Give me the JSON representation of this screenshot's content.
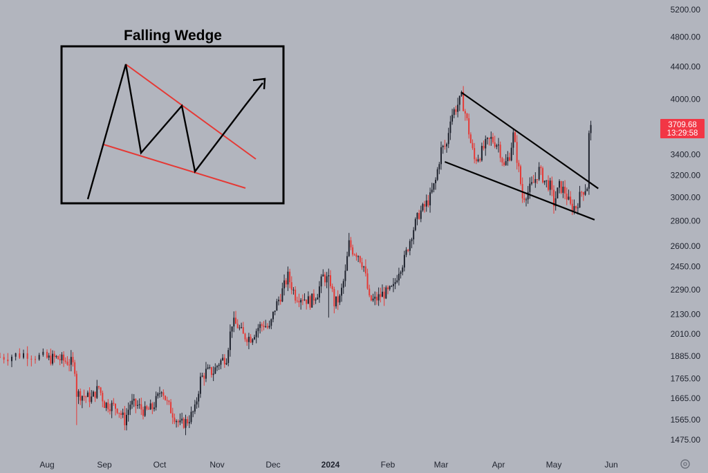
{
  "chart_data": {
    "type": "candlestick",
    "title": "",
    "xlabel": "",
    "ylabel": "",
    "y_scale": "log",
    "ylim": [
      1420,
      5350
    ],
    "y_ticks": [
      "5200.00",
      "4800.00",
      "4400.00",
      "4000.00",
      "3400.00",
      "3200.00",
      "3000.00",
      "2800.00",
      "2600.00",
      "2450.00",
      "2290.00",
      "2130.00",
      "2010.00",
      "1885.00",
      "1765.00",
      "1665.00",
      "1565.00",
      "1475.00"
    ],
    "x_labels": [
      {
        "text": "Aug",
        "bold": false
      },
      {
        "text": "Sep",
        "bold": false
      },
      {
        "text": "Oct",
        "bold": false
      },
      {
        "text": "Nov",
        "bold": false
      },
      {
        "text": "Dec",
        "bold": false
      },
      {
        "text": "2024",
        "bold": true
      },
      {
        "text": "Feb",
        "bold": false
      },
      {
        "text": "Mar",
        "bold": false
      },
      {
        "text": "Apr",
        "bold": false
      },
      {
        "text": "May",
        "bold": false
      },
      {
        "text": "Jun",
        "bold": false
      }
    ],
    "last_price": {
      "value": "3709.68",
      "countdown": "13:29:58"
    },
    "colors": {
      "up": "#1e222d",
      "down": "#e53935",
      "background": "#b2b5be",
      "price_tag": "#f23645"
    },
    "price_path": [
      [
        "2023-07-20",
        1880
      ],
      [
        "2023-07-24",
        1890
      ],
      [
        "2023-07-27",
        1900
      ],
      [
        "2023-07-30",
        1880
      ],
      [
        "2023-08-02",
        1870
      ],
      [
        "2023-08-06",
        1875
      ],
      [
        "2023-08-10",
        1860
      ],
      [
        "2023-08-14",
        1850
      ],
      [
        "2023-08-16",
        1820
      ],
      [
        "2023-08-17",
        1690
      ],
      [
        "2023-08-20",
        1680
      ],
      [
        "2023-08-25",
        1665
      ],
      [
        "2023-08-29",
        1720
      ],
      [
        "2023-09-01",
        1640
      ],
      [
        "2023-09-05",
        1630
      ],
      [
        "2023-09-08",
        1620
      ],
      [
        "2023-09-12",
        1560
      ],
      [
        "2023-09-15",
        1640
      ],
      [
        "2023-09-19",
        1630
      ],
      [
        "2023-09-23",
        1600
      ],
      [
        "2023-09-27",
        1620
      ],
      [
        "2023-09-30",
        1670
      ],
      [
        "2023-10-02",
        1720
      ],
      [
        "2023-10-05",
        1640
      ],
      [
        "2023-10-09",
        1580
      ],
      [
        "2023-10-12",
        1540
      ],
      [
        "2023-10-16",
        1560
      ],
      [
        "2023-10-20",
        1610
      ],
      [
        "2023-10-23",
        1760
      ],
      [
        "2023-10-26",
        1800
      ],
      [
        "2023-10-30",
        1800
      ],
      [
        "2023-11-02",
        1850
      ],
      [
        "2023-11-06",
        1880
      ],
      [
        "2023-11-09",
        2080
      ],
      [
        "2023-11-12",
        2060
      ],
      [
        "2023-11-15",
        2000
      ],
      [
        "2023-11-19",
        1990
      ],
      [
        "2023-11-23",
        2050
      ],
      [
        "2023-11-26",
        2070
      ],
      [
        "2023-11-29",
        2040
      ],
      [
        "2023-12-02",
        2170
      ],
      [
        "2023-12-05",
        2250
      ],
      [
        "2023-12-09",
        2380
      ],
      [
        "2023-12-13",
        2250
      ],
      [
        "2023-12-17",
        2240
      ],
      [
        "2023-12-21",
        2210
      ],
      [
        "2023-12-25",
        2270
      ],
      [
        "2023-12-28",
        2380
      ],
      [
        "2024-01-01",
        2340
      ],
      [
        "2024-01-03",
        2200
      ],
      [
        "2024-01-06",
        2230
      ],
      [
        "2024-01-09",
        2400
      ],
      [
        "2024-01-11",
        2620
      ],
      [
        "2024-01-13",
        2570
      ],
      [
        "2024-01-16",
        2540
      ],
      [
        "2024-01-19",
        2450
      ],
      [
        "2024-01-22",
        2220
      ],
      [
        "2024-01-25",
        2220
      ],
      [
        "2024-01-29",
        2260
      ],
      [
        "2024-02-01",
        2270
      ],
      [
        "2024-02-04",
        2300
      ],
      [
        "2024-02-07",
        2430
      ],
      [
        "2024-02-10",
        2500
      ],
      [
        "2024-02-14",
        2700
      ],
      [
        "2024-02-18",
        2860
      ],
      [
        "2024-02-21",
        2920
      ],
      [
        "2024-02-24",
        3000
      ],
      [
        "2024-02-27",
        3150
      ],
      [
        "2024-03-01",
        3450
      ],
      [
        "2024-03-04",
        3500
      ],
      [
        "2024-03-06",
        3800
      ],
      [
        "2024-03-09",
        3900
      ],
      [
        "2024-03-12",
        4020
      ],
      [
        "2024-03-15",
        3750
      ],
      [
        "2024-03-17",
        3520
      ],
      [
        "2024-03-19",
        3350
      ],
      [
        "2024-03-22",
        3400
      ],
      [
        "2024-03-25",
        3500
      ],
      [
        "2024-03-28",
        3560
      ],
      [
        "2024-04-01",
        3500
      ],
      [
        "2024-04-04",
        3280
      ],
      [
        "2024-04-07",
        3400
      ],
      [
        "2024-04-09",
        3600
      ],
      [
        "2024-04-12",
        3250
      ],
      [
        "2024-04-14",
        3000
      ],
      [
        "2024-04-17",
        3050
      ],
      [
        "2024-04-20",
        3130
      ],
      [
        "2024-04-23",
        3250
      ],
      [
        "2024-04-26",
        3150
      ],
      [
        "2024-04-29",
        3100
      ],
      [
        "2024-05-01",
        2950
      ],
      [
        "2024-05-04",
        3100
      ],
      [
        "2024-05-07",
        3050
      ],
      [
        "2024-05-10",
        2920
      ],
      [
        "2024-05-13",
        2920
      ],
      [
        "2024-05-16",
        3050
      ],
      [
        "2024-05-19",
        3100
      ],
      [
        "2024-05-20",
        3600
      ],
      [
        "2024-05-21",
        3709.68
      ]
    ],
    "wedge_upper": [
      [
        "2024-03-12",
        4080
      ],
      [
        "2024-05-25",
        3080
      ]
    ],
    "wedge_lower": [
      [
        "2024-03-03",
        3330
      ],
      [
        "2024-05-23",
        2810
      ]
    ],
    "inset": {
      "title": "Falling Wedge",
      "line_color": "#000000",
      "trendline_color": "#e53935"
    }
  }
}
